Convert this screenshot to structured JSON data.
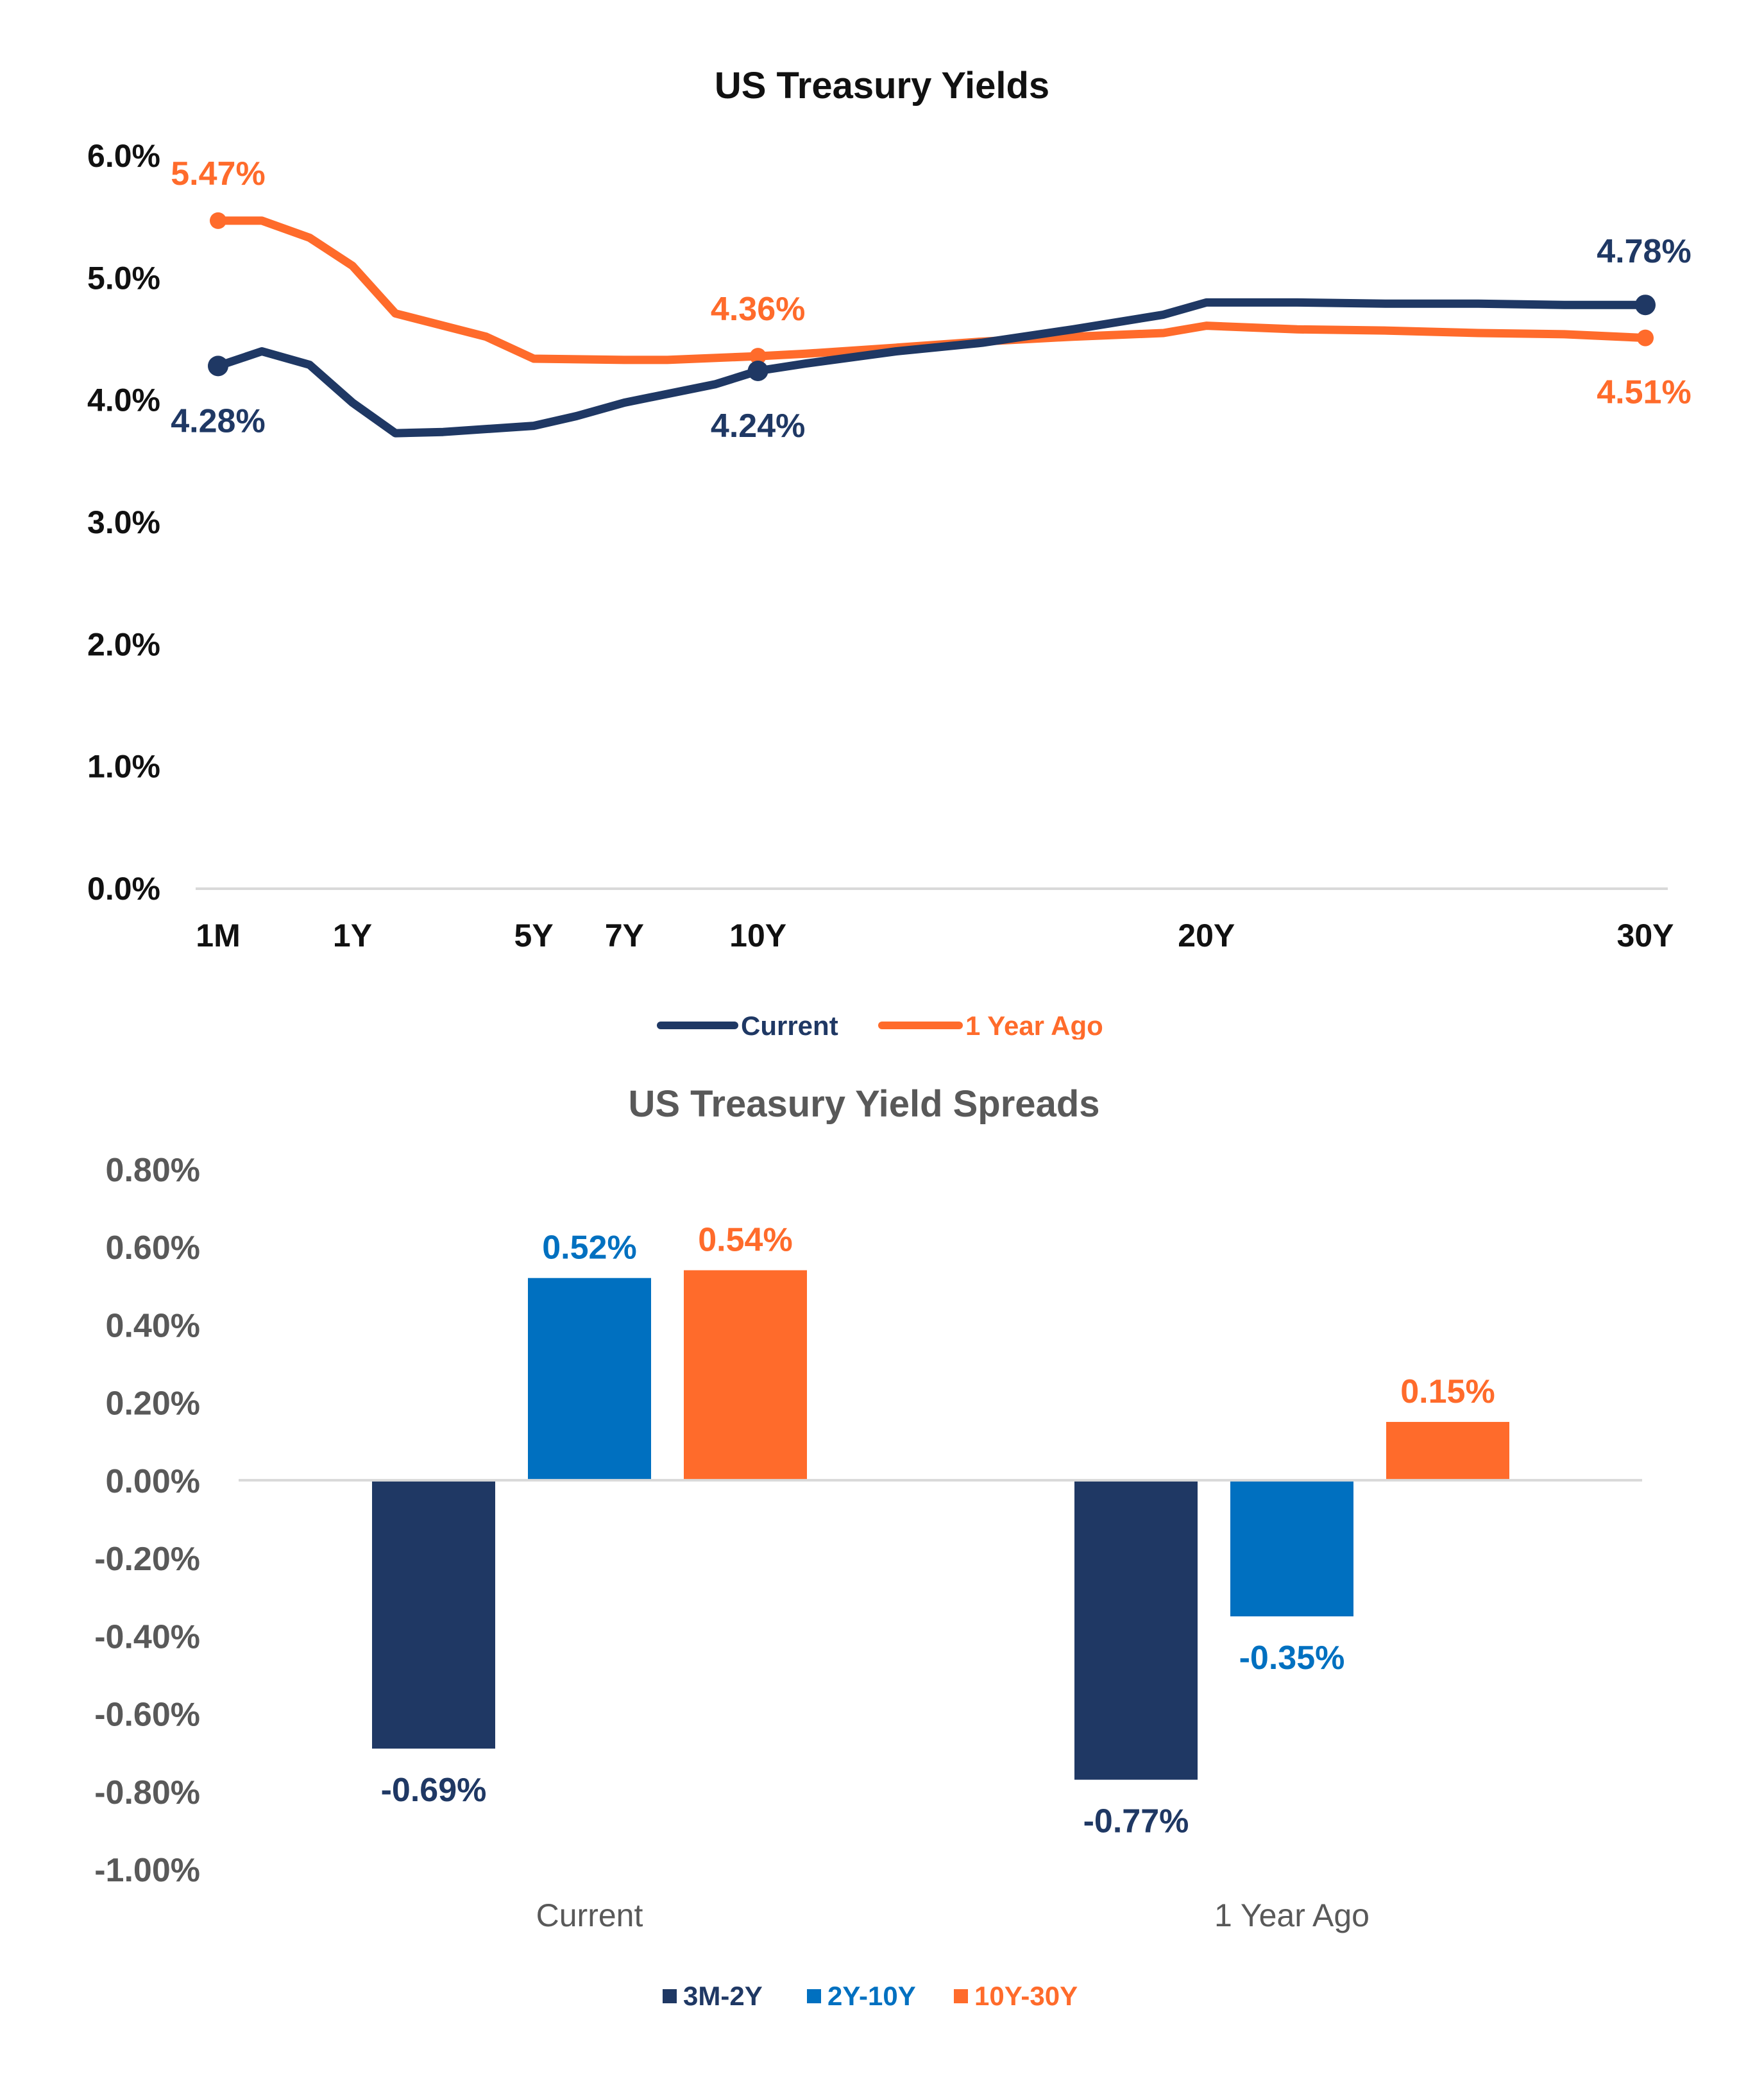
{
  "chart_data": [
    {
      "type": "line",
      "title": "US Treasury Yields",
      "xlabel": "",
      "ylabel": "",
      "ylim": [
        0,
        6
      ],
      "y_ticks": [
        "0.0%",
        "1.0%",
        "2.0%",
        "3.0%",
        "4.0%",
        "5.0%",
        "6.0%"
      ],
      "x_range_years": [
        0.0833,
        30
      ],
      "x_ticks": [
        {
          "label": "1M",
          "x": 0.0833
        },
        {
          "label": "1Y",
          "x": 2.9
        },
        {
          "label": "5Y",
          "x": 6.7
        },
        {
          "label": "7Y",
          "x": 8.6
        },
        {
          "label": "10Y",
          "x": 11.4
        },
        {
          "label": "20Y",
          "x": 20.8
        },
        {
          "label": "30Y",
          "x": 30
        }
      ],
      "series": [
        {
          "name": "Current",
          "color": "#1F3864",
          "x": [
            0.0833,
            1.0,
            2.0,
            2.9,
            3.8,
            4.8,
            6.7,
            7.6,
            8.6,
            10.5,
            11.4,
            12.4,
            14.3,
            16.1,
            18.0,
            19.9,
            20.8,
            22.7,
            24.6,
            26.5,
            28.3,
            30.0
          ],
          "y": [
            4.28,
            4.4,
            4.29,
            3.98,
            3.73,
            3.74,
            3.79,
            3.87,
            3.98,
            4.13,
            4.24,
            4.3,
            4.4,
            4.47,
            4.58,
            4.7,
            4.8,
            4.8,
            4.79,
            4.79,
            4.78,
            4.78
          ],
          "labeled_points": [
            {
              "x": 0.0833,
              "y": 4.28,
              "label": "4.28%"
            },
            {
              "x": 11.4,
              "y": 4.24,
              "label": "4.24%"
            },
            {
              "x": 30.0,
              "y": 4.78,
              "label": "4.78%"
            }
          ]
        },
        {
          "name": "1 Year Ago",
          "color": "#FF6B2B",
          "x": [
            0.0833,
            1.0,
            2.0,
            2.9,
            3.8,
            5.7,
            6.7,
            8.6,
            9.5,
            11.4,
            12.4,
            14.3,
            16.1,
            18.0,
            19.9,
            20.8,
            22.7,
            24.6,
            26.5,
            28.3,
            30.0
          ],
          "y": [
            5.47,
            5.47,
            5.33,
            5.1,
            4.71,
            4.52,
            4.34,
            4.33,
            4.33,
            4.36,
            4.38,
            4.43,
            4.48,
            4.52,
            4.55,
            4.61,
            4.58,
            4.57,
            4.55,
            4.54,
            4.51
          ],
          "labeled_points": [
            {
              "x": 0.0833,
              "y": 5.47,
              "label": "5.47%"
            },
            {
              "x": 11.4,
              "y": 4.36,
              "label": "4.36%"
            },
            {
              "x": 30.0,
              "y": 4.51,
              "label": "4.51%"
            }
          ]
        }
      ],
      "legend": {
        "position": "bottom",
        "entries": [
          "Current",
          "1 Year Ago"
        ]
      }
    },
    {
      "type": "bar",
      "title": "US Treasury Yield Spreads",
      "xlabel": "",
      "ylabel": "",
      "ylim": [
        -1.0,
        0.8
      ],
      "y_ticks": [
        "-1.00%",
        "-0.80%",
        "-0.60%",
        "-0.40%",
        "-0.20%",
        "0.00%",
        "0.20%",
        "0.40%",
        "0.60%",
        "0.80%"
      ],
      "categories": [
        "Current",
        "1 Year Ago"
      ],
      "series": [
        {
          "name": "3M-2Y",
          "color": "#1F3864",
          "values": [
            -0.69,
            -0.77
          ],
          "labels": [
            "-0.69%",
            "-0.77%"
          ]
        },
        {
          "name": "2Y-10Y",
          "color": "#0070C0",
          "values": [
            0.52,
            -0.35
          ],
          "labels": [
            "0.52%",
            "-0.35%"
          ]
        },
        {
          "name": "10Y-30Y",
          "color": "#FF6B2B",
          "values": [
            0.54,
            0.15
          ],
          "labels": [
            "0.54%",
            "0.15%"
          ]
        }
      ],
      "legend": {
        "position": "bottom",
        "entries": [
          "3M-2Y",
          "2Y-10Y",
          "10Y-30Y"
        ]
      }
    }
  ]
}
